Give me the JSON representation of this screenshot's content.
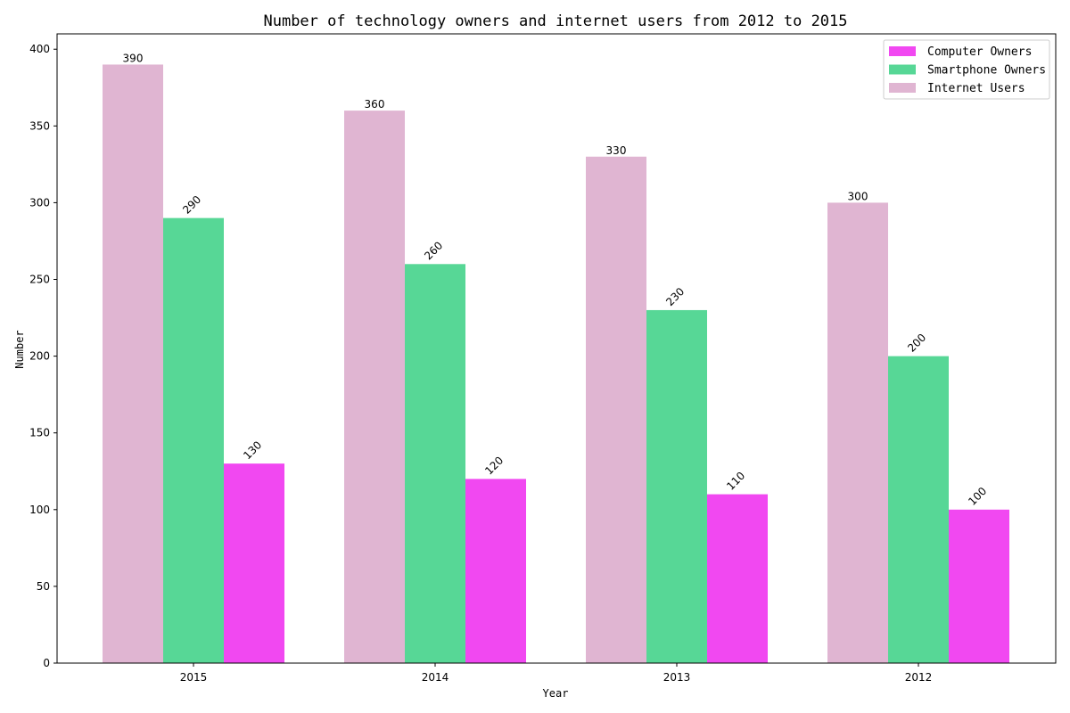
{
  "chart_data": {
    "type": "bar",
    "title": "Number of technology owners and internet users from 2012 to 2015",
    "xlabel": "Year",
    "ylabel": "Number",
    "categories": [
      "2015",
      "2014",
      "2013",
      "2012"
    ],
    "ylim": [
      0,
      410
    ],
    "yticks": [
      0,
      50,
      100,
      150,
      200,
      250,
      300,
      350,
      400
    ],
    "grid": false,
    "legend_position": "top-right",
    "series": [
      {
        "name": "Internet Users",
        "color": "#e0b5d2",
        "values": [
          390,
          360,
          330,
          300
        ],
        "label_rotation": 0
      },
      {
        "name": "Smartphone Owners",
        "color": "#57d796",
        "values": [
          290,
          260,
          230,
          200
        ],
        "label_rotation": -45
      },
      {
        "name": "Computer Owners",
        "color": "#f148f1",
        "values": [
          130,
          120,
          110,
          100
        ],
        "label_rotation": -45
      }
    ],
    "legend_order": [
      "Computer Owners",
      "Smartphone Owners",
      "Internet Users"
    ]
  }
}
